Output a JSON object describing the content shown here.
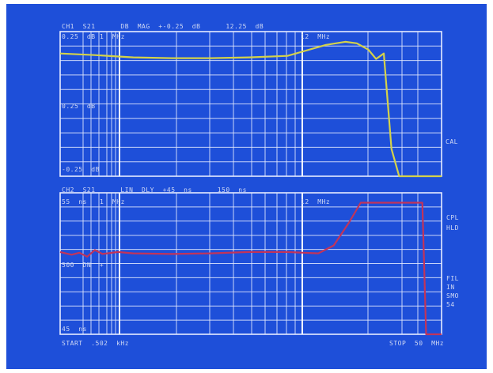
{
  "colors": {
    "background": "#1e4fd9",
    "grid": "#e6ecff",
    "ch1_trace": "#d4d24a",
    "ch2_trace": "#c2345a",
    "text": "#cfd8f4"
  },
  "ch1": {
    "header": "CH1  S21      DB  MAG  +-0.25  dB      12.25  dB",
    "ref_top": "0.25  dB",
    "marker1": "1  MHz",
    "marker2": "12  MHz",
    "ref_mid": "0.25  dB",
    "ref_bottom": "-0.25  dB",
    "side_cal": "CAL"
  },
  "ch2": {
    "header": "CH2  S21      LIN  DLY  +45  ns      150  ns",
    "ref_top": "55  ns",
    "marker1": "1  MHz",
    "marker2": "12  MHz",
    "ref_mid": "500  DN  +",
    "ref_bottom": "45  ns",
    "side_cpl": "CPL",
    "side_hld": "HLD",
    "side_fil": "FIL",
    "side_fil2": "IN",
    "side_smo": "SMO",
    "side_smo2": "54"
  },
  "start_label": "START  .502  kHz",
  "stop_label": "STOP  50  MHz",
  "chart_data": [
    {
      "type": "line",
      "title": "CH1  S21      DB  MAG  +-0.25  dB      12.25  dB",
      "xlabel": "",
      "ylabel": "",
      "grid": true,
      "series": [
        {
          "name": "",
          "x": [
            0.502,
            5,
            10,
            15,
            20,
            25,
            30,
            35,
            37.5,
            39,
            40.5,
            41.5,
            42.5,
            43.5,
            44.5,
            45,
            50
          ],
          "values": [
            0.27,
            0.25,
            0.22,
            0.21,
            0.21,
            0.22,
            0.24,
            0.38,
            0.42,
            0.4,
            0.32,
            0.2,
            0.27,
            -0.95,
            -1.3,
            -1.3,
            -1.3
          ]
        }
      ]
    },
    {
      "type": "line",
      "title": "CH2  S21      LIN  DLY  +45  ns      150  ns",
      "xlabel": "",
      "ylabel": "",
      "grid": true,
      "series": [
        {
          "name": "",
          "x": [
            0.502,
            2,
            3,
            4,
            5,
            6,
            8,
            10,
            15,
            20,
            25,
            30,
            34,
            36,
            38,
            39.5,
            41,
            45,
            47.5,
            48,
            50
          ],
          "values": [
            100,
            96,
            99,
            93,
            103,
            97,
            100,
            98,
            97,
            98,
            100,
            100,
            98,
            110,
            145,
            175,
            175,
            175,
            175,
            -25,
            -25
          ]
        }
      ]
    }
  ]
}
